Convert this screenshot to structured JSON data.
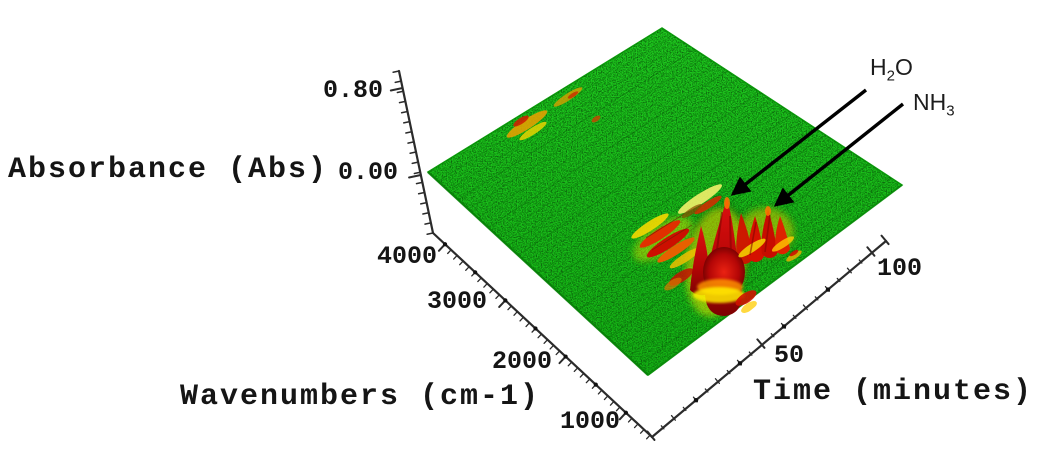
{
  "figure": {
    "kind": "3D FTIR evolved-gas absorbance surface plot",
    "background": "#ffffff"
  },
  "axes": {
    "absorbance": {
      "label": "Absorbance (Abs)",
      "ticks": [
        "0.80",
        "0.00"
      ]
    },
    "wavenumbers": {
      "label": "Wavenumbers (cm-1)",
      "ticks": [
        "4000",
        "3000",
        "2000",
        "1000"
      ]
    },
    "time": {
      "label": "Time (minutes)",
      "ticks": [
        "50",
        "100"
      ]
    }
  },
  "annotations": {
    "h2o": {
      "prefix": "H",
      "subscript": "2",
      "suffix": "O"
    },
    "nh3": {
      "prefix": "NH",
      "subscript": "3",
      "suffix": ""
    }
  },
  "colors": {
    "surface_green": "#1cc01c",
    "speckle_dark_green": "#0a5a0a",
    "peak_red": "#cc0c00",
    "peak_yellow": "#ffee00",
    "axis_line": "#2b2b2b",
    "text": "#151515"
  },
  "chart_data": {
    "type": "heatmap",
    "plot_kind": "3d_surface",
    "title": "",
    "x_axis": {
      "label": "Time (minutes)",
      "ticks": [
        50,
        100
      ],
      "range_est": [
        0,
        115
      ]
    },
    "y_axis": {
      "label": "Wavenumbers (cm-1)",
      "ticks": [
        4000,
        3000,
        2000,
        1000
      ],
      "range_est": [
        4200,
        850
      ]
    },
    "z_axis": {
      "label": "Absorbance (Abs)",
      "ticks": [
        0.0,
        0.8
      ],
      "range": [
        0.0,
        0.8
      ]
    },
    "grid": false,
    "legend": false,
    "colormap": [
      {
        "level": "low (~0 Abs)",
        "color": "#1cc01c"
      },
      {
        "level": "mid",
        "color": "#ffee00"
      },
      {
        "level": "high (~0.8 Abs)",
        "color": "#cc0c00"
      }
    ],
    "annotated_peaks": [
      {
        "label": "H2O",
        "wavenumber_cm-1_est": 1600,
        "time_min_est": 55,
        "absorbance_est": 0.8
      },
      {
        "label": "NH3",
        "wavenumber_cm-1_est": 1250,
        "time_min_est": 60,
        "absorbance_est": 0.5
      }
    ],
    "other_features": [
      {
        "desc": "cluster of strong red/yellow gas-evolution bands",
        "wavenumber_range_est": [
          1100,
          2300
        ],
        "time_range_min_est": [
          15,
          75
        ],
        "max_absorbance_est": 0.8
      },
      {
        "desc": "weak orange-yellow streaks (O-H stretch region)",
        "wavenumber_range_est": [
          3600,
          4000
        ],
        "time_range_min_est": [
          35,
          70
        ],
        "max_absorbance_est": 0.15
      },
      {
        "desc": "flat noisy green baseline over rest of surface",
        "absorbance_est": 0.0
      }
    ]
  }
}
